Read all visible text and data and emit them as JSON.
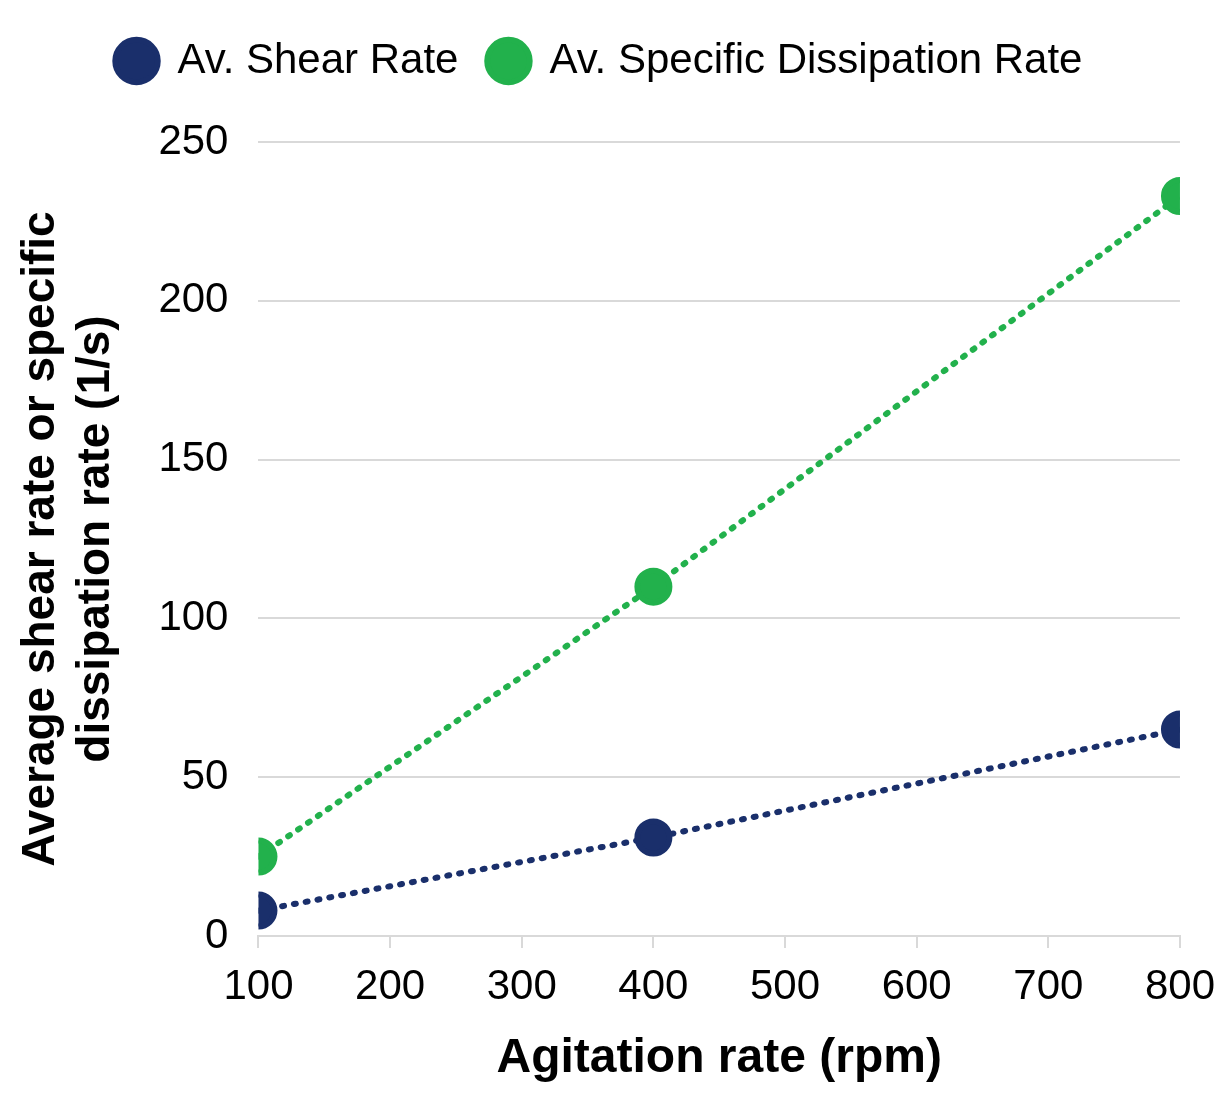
{
  "chart_data": {
    "type": "line",
    "xlabel": "Agitation rate (rpm)",
    "ylabel": "Average shear rate or specific dissipation rate (1/s)",
    "x": [
      100,
      400,
      800
    ],
    "series": [
      {
        "name": "Av. Shear Rate",
        "color": "#1a2f6b",
        "values": [
          8,
          31,
          65
        ]
      },
      {
        "name": "Av. Specific Dissipation Rate",
        "color": "#22b14c",
        "values": [
          25,
          110,
          233
        ]
      }
    ],
    "xlim": [
      100,
      800
    ],
    "xticks": [
      100,
      200,
      300,
      400,
      500,
      600,
      700,
      800
    ],
    "ylim": [
      0,
      250
    ],
    "yticks": [
      0,
      50,
      100,
      150,
      200,
      250
    ],
    "grid": "y",
    "legend": "top",
    "marker": "circle",
    "line_style": "dotted"
  }
}
